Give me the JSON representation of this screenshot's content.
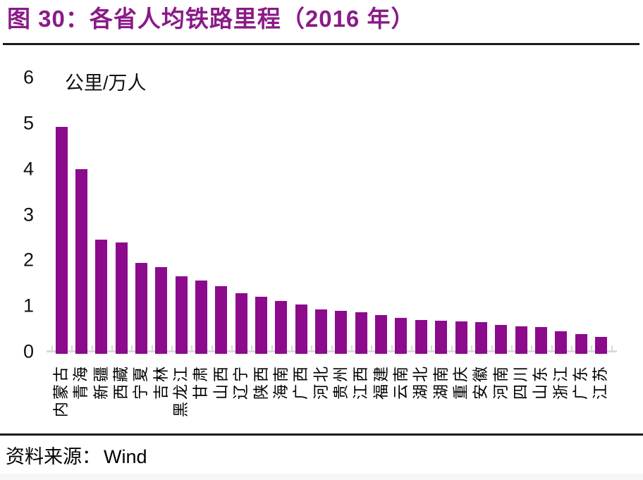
{
  "figure": {
    "title": "图 30：各省人均铁路里程（2016 年）",
    "source": {
      "label": "资料来源：",
      "value": "Wind"
    }
  },
  "chart_data": {
    "type": "bar",
    "title": "各省人均铁路里程（2016 年）",
    "unit_label": "公里/万人",
    "categories": [
      "内蒙古",
      "青海",
      "新疆",
      "西藏",
      "宁夏",
      "吉林",
      "黑龙江",
      "甘肃",
      "山西",
      "辽宁",
      "陕西",
      "海南",
      "广西",
      "河北",
      "贵州",
      "江西",
      "福建",
      "云南",
      "湖北",
      "湖南",
      "重庆",
      "安徽",
      "河南",
      "四川",
      "山东",
      "浙江",
      "广东",
      "江苏"
    ],
    "values": [
      4.92,
      4.0,
      2.46,
      2.39,
      1.95,
      1.85,
      1.65,
      1.56,
      1.43,
      1.28,
      1.2,
      1.11,
      1.04,
      0.92,
      0.9,
      0.86,
      0.8,
      0.74,
      0.7,
      0.68,
      0.67,
      0.65,
      0.58,
      0.55,
      0.54,
      0.45,
      0.38,
      0.33
    ],
    "ylabel": "公里/万人",
    "xlabel": "",
    "ylim": [
      0,
      6
    ],
    "yticks": [
      0,
      1,
      2,
      3,
      4,
      5,
      6
    ],
    "grid": false,
    "legend": "none",
    "bar_color": "#8C0A8C",
    "axis_color": "#D9D9D9"
  },
  "colors": {
    "title": "#8A1A88",
    "divider": "#1A1A1A",
    "text": "#000000"
  }
}
